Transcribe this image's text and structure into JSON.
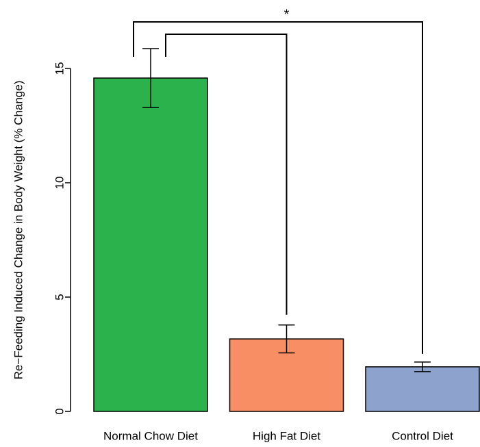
{
  "chart_data": {
    "type": "bar",
    "y_label": "Re−Feeding Induced Change in Body Weight (% Change)",
    "categories": [
      "Normal Chow Diet",
      "High Fat Diet",
      "Control Diet"
    ],
    "values": [
      14.58,
      3.17,
      1.95
    ],
    "errors": [
      1.29,
      0.61,
      0.21
    ],
    "colors": [
      "#2bb24c",
      "#f78e64",
      "#8da2cd"
    ],
    "ylim": [
      0,
      17.5
    ],
    "yticks": [
      0,
      5,
      10,
      15
    ],
    "annotation": "*"
  }
}
